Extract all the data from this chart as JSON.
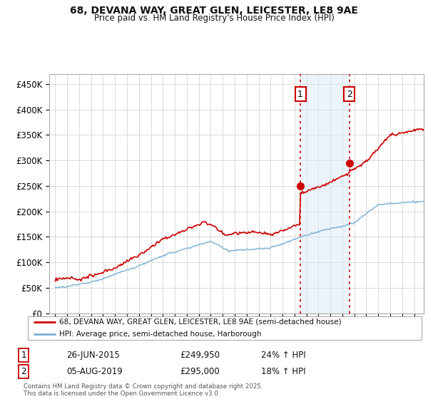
{
  "title1": "68, DEVANA WAY, GREAT GLEN, LEICESTER, LE8 9AE",
  "title2": "Price paid vs. HM Land Registry's House Price Index (HPI)",
  "ylim": [
    0,
    470000
  ],
  "yticks": [
    0,
    50000,
    100000,
    150000,
    200000,
    250000,
    300000,
    350000,
    400000,
    450000
  ],
  "ytick_labels": [
    "£0",
    "£50K",
    "£100K",
    "£150K",
    "£200K",
    "£250K",
    "£300K",
    "£350K",
    "£400K",
    "£450K"
  ],
  "xlim_start": 1994.5,
  "xlim_end": 2025.8,
  "sale1_x": 2015.49,
  "sale1_y": 249950,
  "sale2_x": 2019.59,
  "sale2_y": 295000,
  "line1_color": "#cc0000",
  "line2_color": "#7aafd4",
  "grid_color": "#cccccc",
  "background_color": "#ffffff",
  "shade_between_color": "#daeaf7",
  "legend1": "68, DEVANA WAY, GREAT GLEN, LEICESTER, LE8 9AE (semi-detached house)",
  "legend2": "HPI: Average price, semi-detached house, Harborough",
  "table_row1": [
    "1",
    "26-JUN-2015",
    "£249,950",
    "24% ↑ HPI"
  ],
  "table_row2": [
    "2",
    "05-AUG-2019",
    "£295,000",
    "18% ↑ HPI"
  ],
  "footer": "Contains HM Land Registry data © Crown copyright and database right 2025.\nThis data is licensed under the Open Government Licence v3.0.",
  "vline_color": "#cc0000"
}
